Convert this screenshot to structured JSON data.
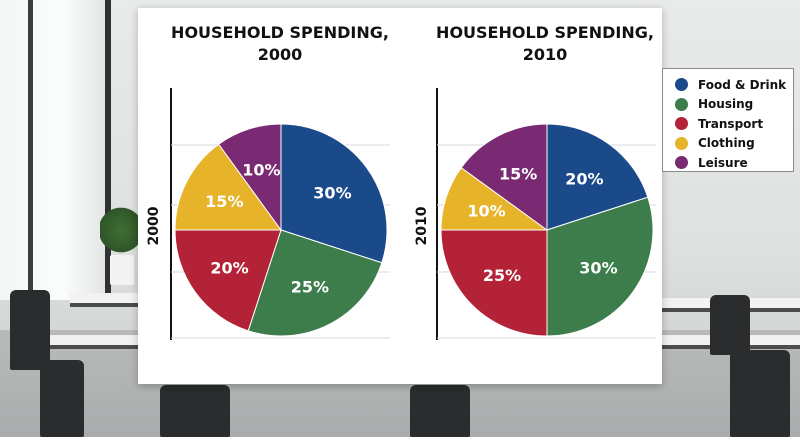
{
  "chart_data": [
    {
      "type": "pie",
      "title": "HOUSEHOLD SPENDING, 2000",
      "side_label": "2000",
      "categories": [
        "Food & Drink",
        "Housing",
        "Transport",
        "Clothing",
        "Leisure"
      ],
      "values": [
        30,
        25,
        20,
        15,
        10
      ],
      "labels": [
        "30%",
        "25%",
        "20%",
        "15%",
        "10%"
      ]
    },
    {
      "type": "pie",
      "title": "HOUSEHOLD SPENDING, 2010",
      "side_label": "2010",
      "categories": [
        "Food & Drink",
        "Housing",
        "Transport",
        "Clothing",
        "Leisure"
      ],
      "values": [
        20,
        30,
        25,
        10,
        15
      ],
      "labels": [
        "20%",
        "30%",
        "25%",
        "10%",
        "15%"
      ]
    }
  ],
  "legend": {
    "placement": "right",
    "items": [
      {
        "label": "Food & Drink",
        "color": "#1b4a8a"
      },
      {
        "label": "Housing",
        "color": "#3d7d4b"
      },
      {
        "label": "Transport",
        "color": "#b32237"
      },
      {
        "label": "Clothing",
        "color": "#e6b329"
      },
      {
        "label": "Leisure",
        "color": "#7a2a72"
      }
    ]
  }
}
